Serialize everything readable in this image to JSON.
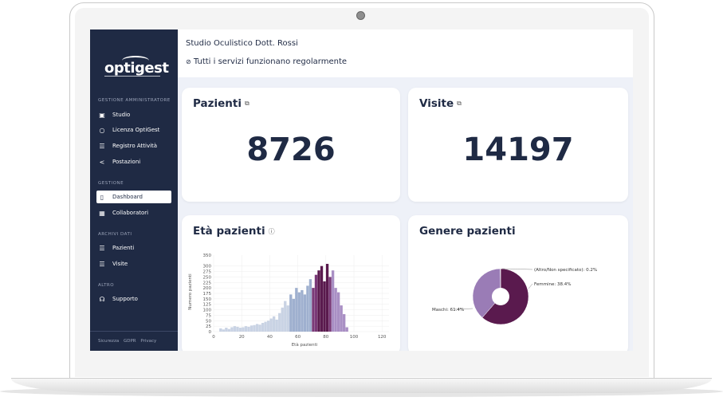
{
  "app": {
    "logo": "optigest",
    "studio_name": "Studio Oculistico Dott. Rossi",
    "status_message": "Tutti i servizi funzionano regolarmente"
  },
  "sidebar": {
    "sections": [
      {
        "title": "GESTIONE AMMINISTRATORE",
        "items": [
          {
            "label": "Studio",
            "icon": "building-icon"
          },
          {
            "label": "Licenza OptiGest",
            "icon": "circle-icon"
          },
          {
            "label": "Registro Attività",
            "icon": "list-icon"
          },
          {
            "label": "Postazioni",
            "icon": "share-icon"
          }
        ]
      },
      {
        "title": "GESTIONE",
        "items": [
          {
            "label": "Dashboard",
            "icon": "bookmark-icon",
            "active": true
          },
          {
            "label": "Collaboratori",
            "icon": "calendar-icon"
          }
        ]
      },
      {
        "title": "ARCHIVI DATI",
        "items": [
          {
            "label": "Pazienti",
            "icon": "list-icon"
          },
          {
            "label": "Visite",
            "icon": "list-icon"
          }
        ]
      },
      {
        "title": "ALTRO",
        "items": [
          {
            "label": "Supporto",
            "icon": "headset-icon"
          }
        ]
      }
    ],
    "footer_links": [
      "Sicurezza",
      "GDPR",
      "Privacy"
    ]
  },
  "cards": {
    "pazienti": {
      "title": "Pazienti",
      "value": "8726"
    },
    "visite": {
      "title": "Visite",
      "value": "14197"
    },
    "eta": {
      "title": "Età pazienti"
    },
    "genere": {
      "title": "Genere pazienti"
    }
  },
  "colors": {
    "sidebar_bg": "#1f2a44",
    "accent_dark": "#5a1a4e",
    "accent_light": "#9a7cb6",
    "bar_light": "#c9d3e4"
  },
  "chart_data": [
    {
      "type": "bar",
      "title": "",
      "xlabel": "Età pazienti",
      "ylabel": "Numero pazienti",
      "xlim": [
        0,
        125
      ],
      "ylim": [
        0,
        350
      ],
      "x_ticks": [
        "0",
        "20",
        "40",
        "60",
        "80",
        "100",
        "120"
      ],
      "y_ticks": [
        "0",
        "25",
        "50",
        "75",
        "100",
        "125",
        "150",
        "175",
        "200",
        "225",
        "250",
        "275",
        "300",
        "350"
      ],
      "x": [
        5,
        7,
        9,
        11,
        13,
        15,
        17,
        19,
        21,
        23,
        25,
        27,
        29,
        31,
        33,
        35,
        37,
        39,
        41,
        43,
        45,
        47,
        49,
        51,
        53,
        55,
        57,
        59,
        61,
        63,
        65,
        67,
        69,
        71,
        73,
        75,
        77,
        79,
        81,
        83,
        85,
        87,
        89,
        91,
        93,
        95
      ],
      "values": [
        15,
        10,
        18,
        12,
        20,
        25,
        22,
        18,
        20,
        25,
        22,
        28,
        30,
        35,
        32,
        40,
        45,
        50,
        60,
        70,
        55,
        85,
        110,
        140,
        120,
        170,
        150,
        200,
        180,
        190,
        170,
        210,
        240,
        200,
        260,
        280,
        300,
        230,
        310,
        250,
        280,
        200,
        180,
        120,
        80,
        20
      ]
    },
    {
      "type": "pie",
      "title": "",
      "categories": [
        "Maschi",
        "Femmine",
        "(Altro/Non specificato)"
      ],
      "values": [
        61.4,
        38.4,
        0.2
      ],
      "labels": [
        "Maschi: 61.4%",
        "Femmine: 38.4%",
        "(Altro/Non specificato): 0.2%"
      ]
    }
  ]
}
